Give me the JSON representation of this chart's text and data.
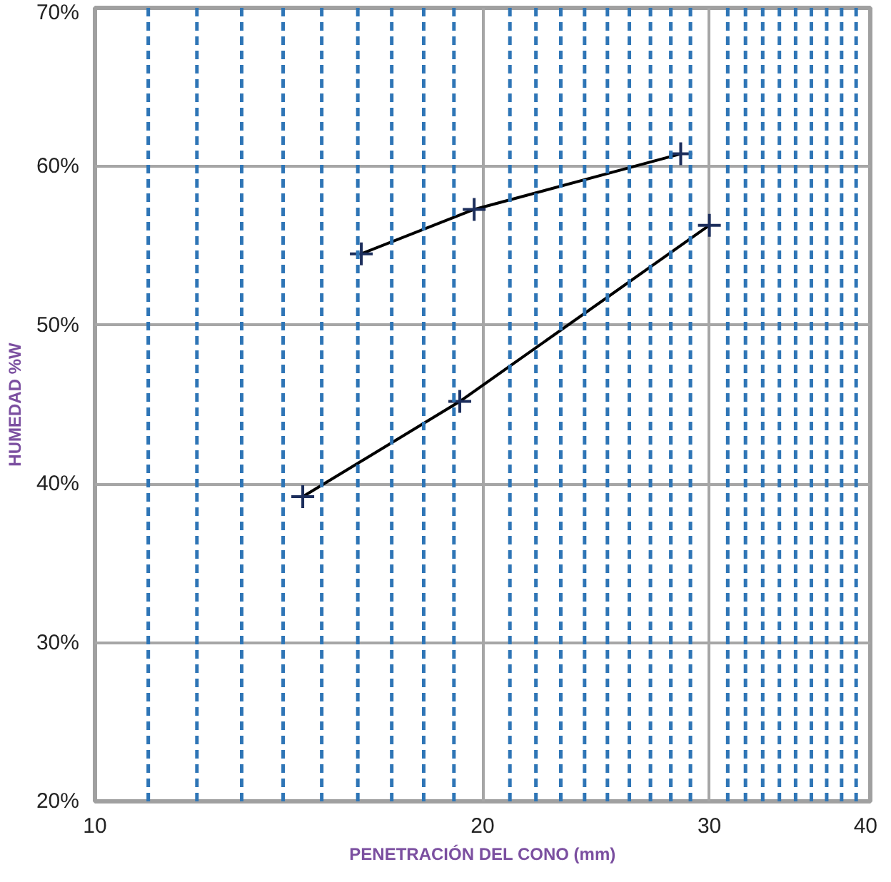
{
  "chart_data": {
    "type": "line",
    "xlabel": "PENETRACIÓN DEL CONO (mm)",
    "ylabel": "HUMEDAD %W",
    "log": "x",
    "xlim": [
      10,
      40
    ],
    "xticks": [
      10,
      20,
      30,
      40
    ],
    "ylim": [
      20,
      70
    ],
    "yticks": [
      {
        "value": 20,
        "label": "20%"
      },
      {
        "value": 30,
        "label": "30%"
      },
      {
        "value": 40,
        "label": "40%"
      },
      {
        "value": 50,
        "label": "50%"
      },
      {
        "value": 60,
        "label": "60%"
      },
      {
        "value": 70,
        "label": "70%"
      }
    ],
    "grid": true,
    "series": [
      {
        "x": [
          16.1,
          19.7,
          28.5
        ],
        "values": [
          54.5,
          57.3,
          60.8
        ],
        "color": "#1c2e5c",
        "marker": "cross"
      },
      {
        "x": [
          14.5,
          19.2,
          30
        ],
        "values": [
          39.2,
          45.2,
          56.3
        ],
        "color": "#1c2e5c",
        "marker": "cross"
      }
    ],
    "ref_lines": [
      {
        "axis": "x",
        "value": 11,
        "color": "#2e75b6",
        "line_style": "dashed"
      },
      {
        "axis": "x",
        "value": 12,
        "color": "#2e75b6",
        "line_style": "dashed"
      },
      {
        "axis": "x",
        "value": 13,
        "color": "#2e75b6",
        "line_style": "dashed"
      },
      {
        "axis": "x",
        "value": 14,
        "color": "#2e75b6",
        "line_style": "dashed"
      },
      {
        "axis": "x",
        "value": 15,
        "color": "#2e75b6",
        "line_style": "dashed"
      },
      {
        "axis": "x",
        "value": 16,
        "color": "#2e75b6",
        "line_style": "dashed"
      },
      {
        "axis": "x",
        "value": 17,
        "color": "#2e75b6",
        "line_style": "dashed"
      },
      {
        "axis": "x",
        "value": 18,
        "color": "#2e75b6",
        "line_style": "dashed"
      },
      {
        "axis": "x",
        "value": 19,
        "color": "#2e75b6",
        "line_style": "dashed"
      },
      {
        "axis": "x",
        "value": 21,
        "color": "#2e75b6",
        "line_style": "dashed"
      },
      {
        "axis": "x",
        "value": 22,
        "color": "#2e75b6",
        "line_style": "dashed"
      },
      {
        "axis": "x",
        "value": 23,
        "color": "#2e75b6",
        "line_style": "dashed"
      },
      {
        "axis": "x",
        "value": 24,
        "color": "#2e75b6",
        "line_style": "dashed"
      },
      {
        "axis": "x",
        "value": 25,
        "color": "#2e75b6",
        "line_style": "dashed"
      },
      {
        "axis": "x",
        "value": 26,
        "color": "#2e75b6",
        "line_style": "dashed"
      },
      {
        "axis": "x",
        "value": 27,
        "color": "#2e75b6",
        "line_style": "dashed"
      },
      {
        "axis": "x",
        "value": 28,
        "color": "#2e75b6",
        "line_style": "dashed"
      },
      {
        "axis": "x",
        "value": 29,
        "color": "#2e75b6",
        "line_style": "dashed"
      },
      {
        "axis": "x",
        "value": 31,
        "color": "#2e75b6",
        "line_style": "dashed"
      },
      {
        "axis": "x",
        "value": 32,
        "color": "#2e75b6",
        "line_style": "dashed"
      },
      {
        "axis": "x",
        "value": 33,
        "color": "#2e75b6",
        "line_style": "dashed"
      },
      {
        "axis": "x",
        "value": 34,
        "color": "#2e75b6",
        "line_style": "dashed"
      },
      {
        "axis": "x",
        "value": 35,
        "color": "#2e75b6",
        "line_style": "dashed"
      },
      {
        "axis": "x",
        "value": 36,
        "color": "#2e75b6",
        "line_style": "dashed"
      },
      {
        "axis": "x",
        "value": 37,
        "color": "#2e75b6",
        "line_style": "dashed"
      },
      {
        "axis": "x",
        "value": 38,
        "color": "#2e75b6",
        "line_style": "dashed"
      },
      {
        "axis": "x",
        "value": 39,
        "color": "#2e75b6",
        "line_style": "dashed"
      }
    ]
  }
}
